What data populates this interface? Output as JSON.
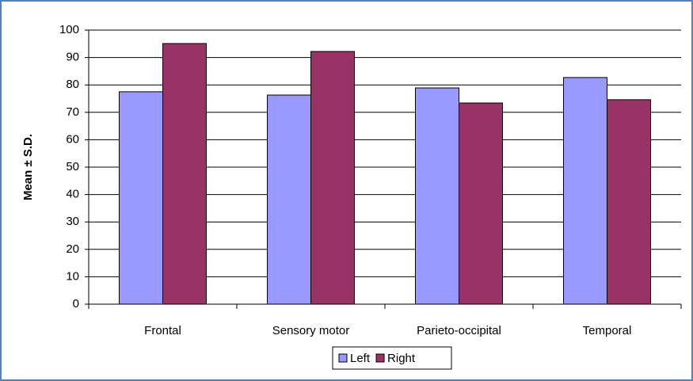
{
  "chart_data": {
    "type": "bar",
    "y_label": "Mean ± S.D.",
    "categories": [
      "Frontal",
      "Sensory motor",
      "Parieto-occipital",
      "Temporal"
    ],
    "series": [
      {
        "name": "Left",
        "color": "#9999ff",
        "values": [
          77.5,
          76.3,
          78.9,
          82.7
        ]
      },
      {
        "name": "Right",
        "color": "#993366",
        "values": [
          95.1,
          92.2,
          73.4,
          74.6
        ]
      }
    ],
    "ylim": [
      0,
      100
    ],
    "yticks": [
      0,
      10,
      20,
      30,
      40,
      50,
      60,
      70,
      80,
      90,
      100
    ],
    "grid": true,
    "legend": "bottom"
  }
}
